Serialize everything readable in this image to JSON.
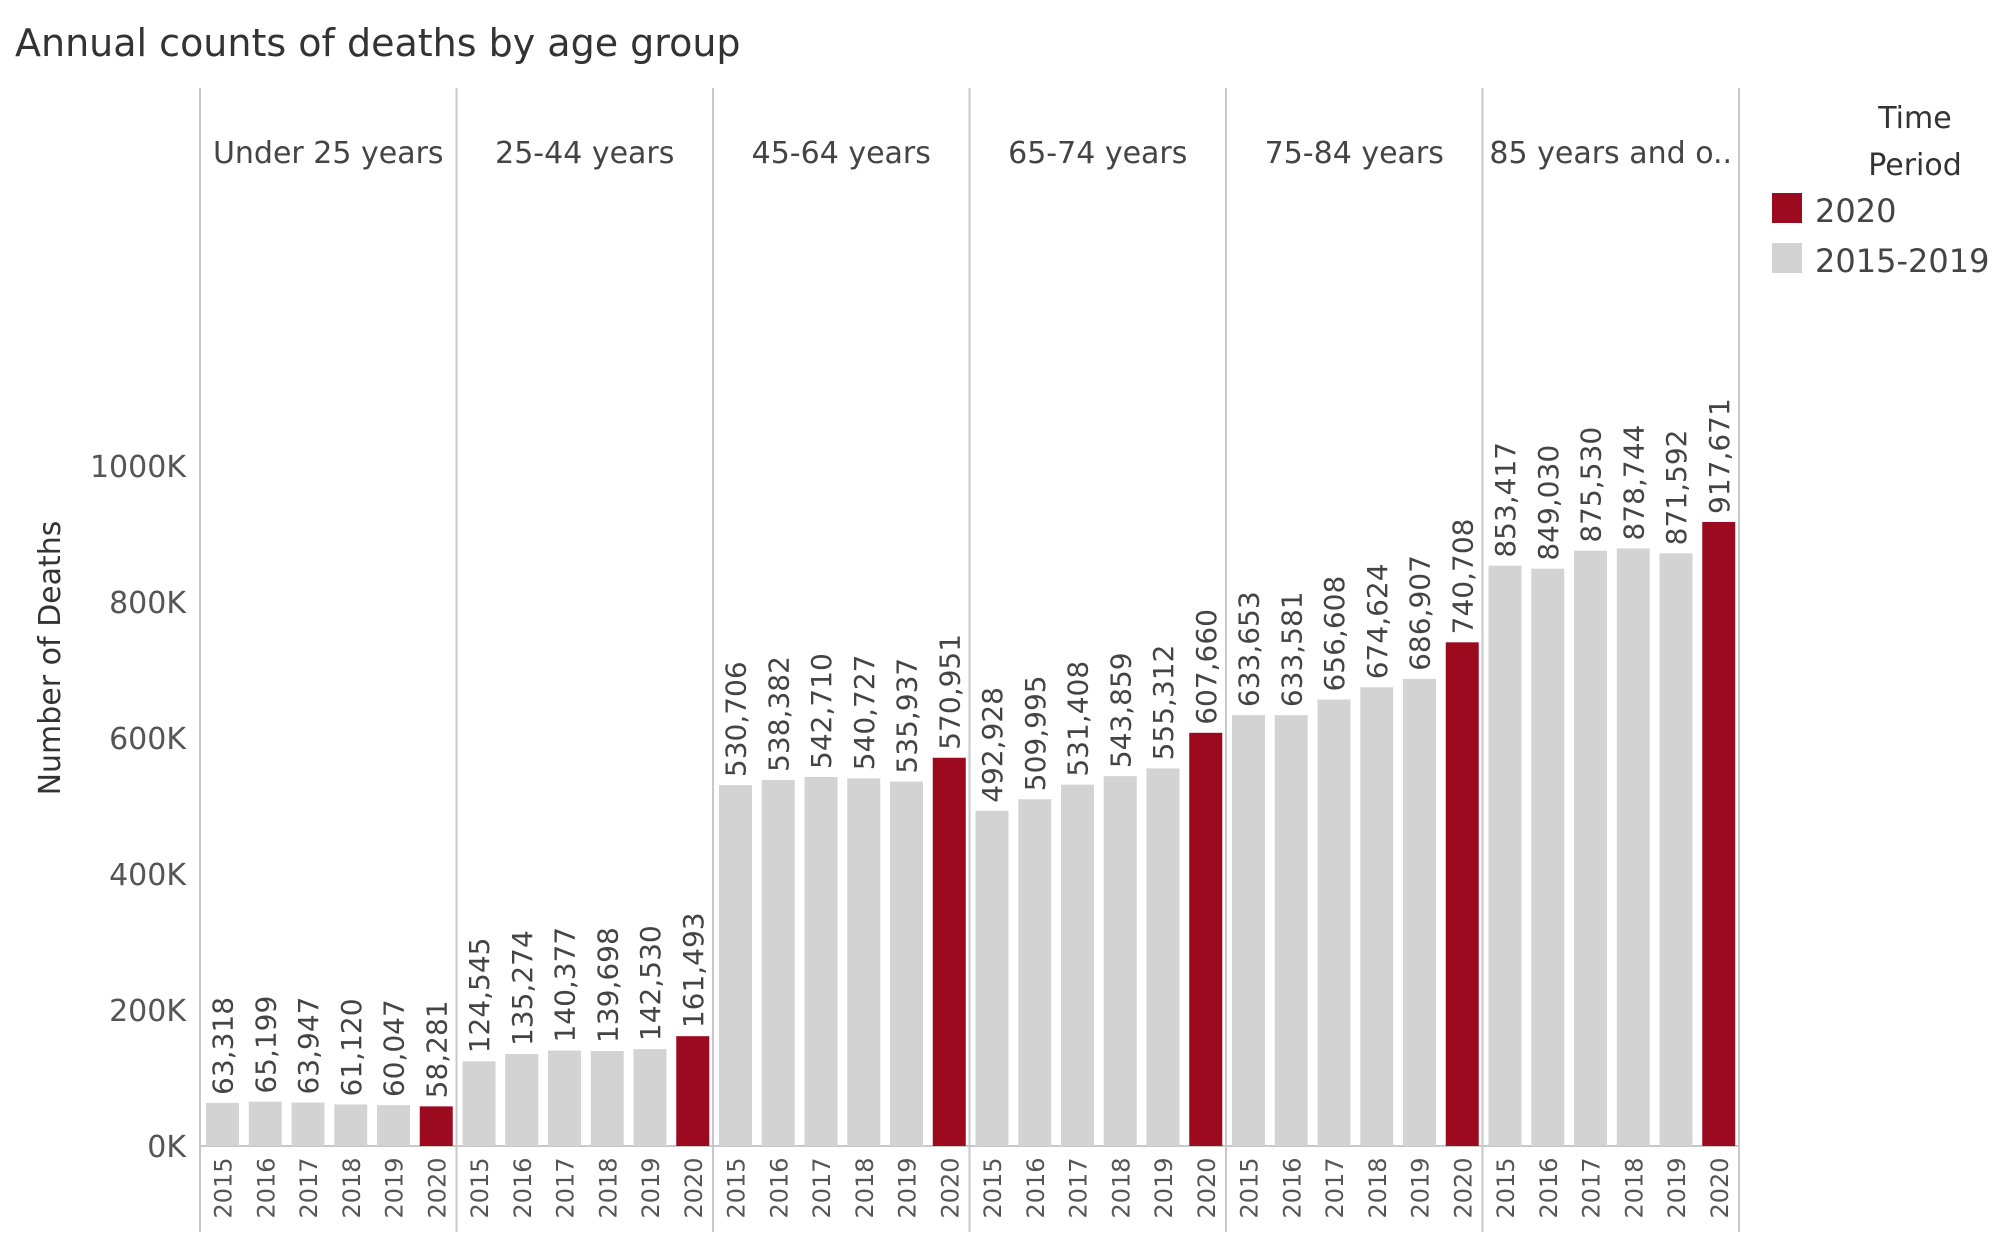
{
  "chart_data": {
    "type": "bar",
    "title": "Annual counts of deaths by age group",
    "ylabel": "Number of Deaths",
    "xlabel": "",
    "ylim": [
      0,
      1200000
    ],
    "y_ticks": [
      0,
      200000,
      400000,
      600000,
      800000,
      1000000
    ],
    "y_tick_labels": [
      "0K",
      "200K",
      "400K",
      "600K",
      "800K",
      "1000K"
    ],
    "years": [
      "2015",
      "2016",
      "2017",
      "2018",
      "2019",
      "2020"
    ],
    "groups": [
      {
        "label": "Under 25 years",
        "values": [
          63318,
          65199,
          63947,
          61120,
          60047,
          58281
        ],
        "value_labels": [
          "63,318",
          "65,199",
          "63,947",
          "61,120",
          "60,047",
          "58,281"
        ]
      },
      {
        "label": "25-44 years",
        "values": [
          124545,
          135274,
          140377,
          139698,
          142530,
          161493
        ],
        "value_labels": [
          "124,545",
          "135,274",
          "140,377",
          "139,698",
          "142,530",
          "161,493"
        ]
      },
      {
        "label": "45-64 years",
        "values": [
          530706,
          538382,
          542710,
          540727,
          535937,
          570951
        ],
        "value_labels": [
          "530,706",
          "538,382",
          "542,710",
          "540,727",
          "535,937",
          "570,951"
        ]
      },
      {
        "label": "65-74 years",
        "values": [
          492928,
          509995,
          531408,
          543859,
          555312,
          607660
        ],
        "value_labels": [
          "492,928",
          "509,995",
          "531,408",
          "543,859",
          "555,312",
          "607,660"
        ]
      },
      {
        "label": "75-84 years",
        "values": [
          633653,
          633581,
          656608,
          674624,
          686907,
          740708
        ],
        "value_labels": [
          "633,653",
          "633,581",
          "656,608",
          "674,624",
          "686,907",
          "740,708"
        ]
      },
      {
        "label": "85 years and o..",
        "values": [
          853417,
          849030,
          875530,
          878744,
          871592,
          917671
        ],
        "value_labels": [
          "853,417",
          "849,030",
          "875,530",
          "878,744",
          "871,592",
          "917,671"
        ]
      }
    ],
    "legend": {
      "title_line1": "Time",
      "title_line2": "Period",
      "position": "right",
      "entries": [
        {
          "label": "2020",
          "color": "#9b0a1e"
        },
        {
          "label": "2015-2019",
          "color": "#d3d3d3"
        }
      ]
    },
    "colors": {
      "highlight": "#9b0a1e",
      "base": "#d3d3d3"
    }
  }
}
